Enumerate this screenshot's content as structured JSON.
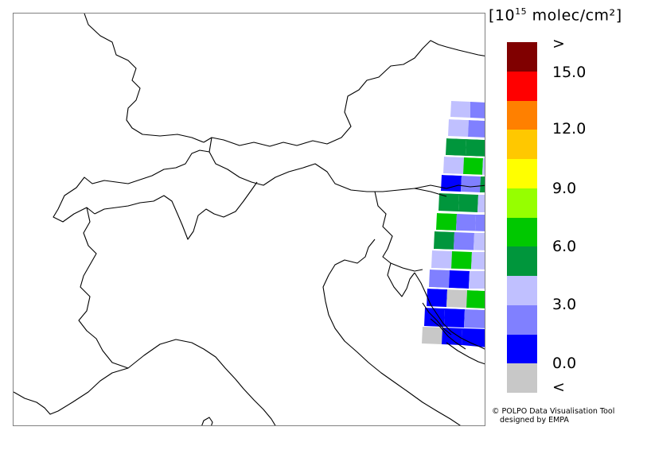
{
  "colorbar": {
    "unit_base": "10",
    "unit_exp": "15",
    "unit_rest": "molec/cm²",
    "swatches": [
      {
        "color": "#800000",
        "range": "> 15.0"
      },
      {
        "color": "#ff0000",
        "range": "13.5-15.0"
      },
      {
        "color": "#ff8000",
        "range": "12.0-13.5"
      },
      {
        "color": "#ffc800",
        "range": "10.5-12.0"
      },
      {
        "color": "#ffff00",
        "range": "9.0-10.5"
      },
      {
        "color": "#96ff00",
        "range": "7.5-9.0"
      },
      {
        "color": "#00c800",
        "range": "6.0-7.5"
      },
      {
        "color": "#00963c",
        "range": "4.5-6.0"
      },
      {
        "color": "#c0c0ff",
        "range": "3.0-4.5"
      },
      {
        "color": "#8080ff",
        "range": "1.5-3.0"
      },
      {
        "color": "#0000ff",
        "range": "0.0-1.5"
      },
      {
        "color": "#c8c8c8",
        "range": "< 0.0"
      }
    ],
    "labels": {
      "gt": ">",
      "l150": "15.0",
      "l120": "12.0",
      "l90": "9.0",
      "l60": "6.0",
      "l30": "3.0",
      "l00": "0.0",
      "lt": "<"
    }
  },
  "credit": {
    "line1": "© POLPO Data Visualisation Tool",
    "line2": "designed by EMPA"
  }
}
